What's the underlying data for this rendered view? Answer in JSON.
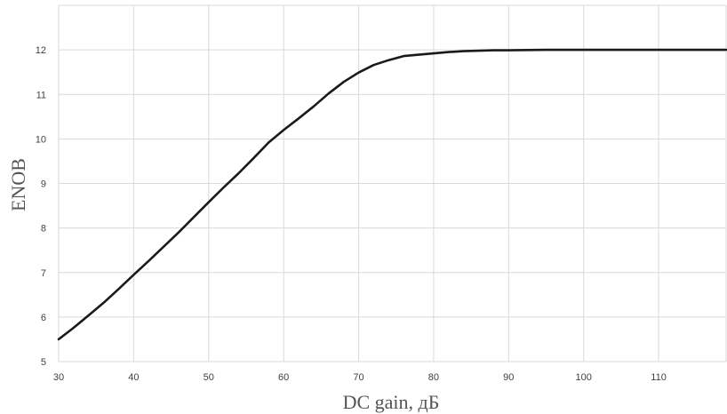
{
  "chart_data": {
    "type": "line",
    "title": "",
    "xlabel": "DC gain, дБ",
    "ylabel": "ENOB",
    "xlim": [
      30,
      119
    ],
    "ylim": [
      5,
      13
    ],
    "grid": true,
    "legend": "none",
    "x_ticks": [
      30,
      40,
      50,
      60,
      70,
      80,
      90,
      100,
      110
    ],
    "y_ticks": [
      5,
      6,
      7,
      8,
      9,
      10,
      11,
      12
    ],
    "colors": {
      "line": "#1a1a1a",
      "grid": "#d9d9d9",
      "text": "#404040"
    },
    "series": [
      {
        "x": [
          30,
          32,
          34,
          36,
          38,
          40,
          42,
          44,
          46,
          48,
          50,
          52,
          54,
          56,
          58,
          60,
          62,
          64,
          66,
          68,
          70,
          72,
          74,
          76,
          78,
          80,
          82,
          84,
          86,
          88,
          90,
          95,
          100,
          105,
          110,
          115,
          119
        ],
        "y": [
          5.5,
          5.76,
          6.04,
          6.32,
          6.63,
          6.95,
          7.26,
          7.58,
          7.9,
          8.24,
          8.58,
          8.91,
          9.23,
          9.57,
          9.92,
          10.2,
          10.46,
          10.73,
          11.02,
          11.28,
          11.49,
          11.66,
          11.77,
          11.86,
          11.89,
          11.92,
          11.95,
          11.97,
          11.98,
          11.99,
          11.99,
          12.0,
          12.0,
          12.0,
          12.0,
          12.0,
          12.0
        ]
      }
    ]
  }
}
